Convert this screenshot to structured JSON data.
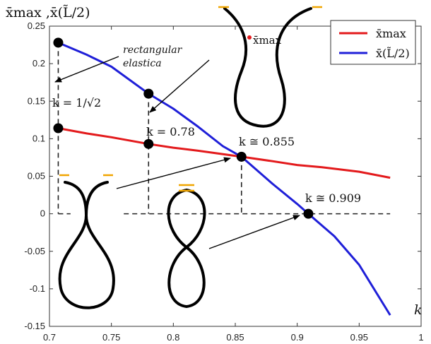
{
  "chart_data": {
    "type": "line",
    "title": "",
    "ylabel": "x̄max ,x̄(L̃/2)",
    "xlabel": "k",
    "xlim": [
      0.7,
      1.0
    ],
    "ylim": [
      -0.15,
      0.25
    ],
    "xticks": [
      "0.7",
      "0.75",
      "0.8",
      "0.85",
      "0.9",
      "0.95",
      "1"
    ],
    "yticks": [
      "0.25",
      "0.2",
      "0.15",
      "0.1",
      "0.05",
      "0",
      "-0.05",
      "-0.1",
      "-0.15"
    ],
    "grid": false,
    "legend_position": "top-right",
    "series": [
      {
        "name": "x̄max",
        "color": "#e31a1c",
        "x": [
          0.7071,
          0.73,
          0.75,
          0.78,
          0.8,
          0.82,
          0.855,
          0.88,
          0.9,
          0.92,
          0.95,
          0.975
        ],
        "y": [
          0.114,
          0.107,
          0.102,
          0.093,
          0.088,
          0.084,
          0.076,
          0.07,
          0.065,
          0.062,
          0.056,
          0.048
        ]
      },
      {
        "name": "x̄(L̃/2)",
        "color": "#1f1fd8",
        "x": [
          0.7071,
          0.73,
          0.75,
          0.78,
          0.8,
          0.82,
          0.84,
          0.855,
          0.88,
          0.9,
          0.909,
          0.93,
          0.95,
          0.975
        ],
        "y": [
          0.228,
          0.212,
          0.196,
          0.16,
          0.14,
          0.116,
          0.09,
          0.076,
          0.04,
          0.013,
          0.0,
          -0.03,
          -0.068,
          -0.135
        ]
      }
    ],
    "markers": [
      {
        "x": 0.7071,
        "y": 0.228
      },
      {
        "x": 0.7071,
        "y": 0.114
      },
      {
        "x": 0.78,
        "y": 0.16
      },
      {
        "x": 0.78,
        "y": 0.093
      },
      {
        "x": 0.855,
        "y": 0.076
      },
      {
        "x": 0.909,
        "y": 0.0
      }
    ],
    "annotations": {
      "rectangular": "rectangular",
      "elastica": "elastica",
      "k1": "k = 1/√2",
      "k2": "k = 0.78",
      "k3": "k ≅ 0.855",
      "k4": "k ≅ 0.909",
      "xmax_point": "x̄max"
    }
  },
  "colors": {
    "curve_stroke": "#000000",
    "curve_end_accent": "#f0a500",
    "red_dot": "#e31a1c"
  }
}
